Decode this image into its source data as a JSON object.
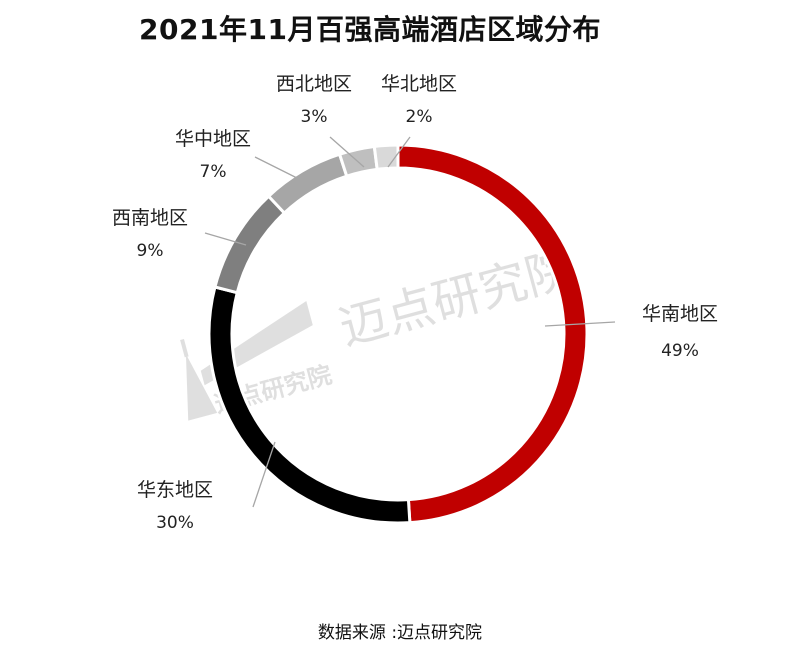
{
  "title": "2021年11月百强高端酒店区域分布",
  "source": "数据来源 :迈点研究院",
  "watermark": {
    "main_text": "迈点研究院",
    "logo_text": "迈点研究院"
  },
  "chart_data": {
    "type": "pie",
    "donut": true,
    "title": "2021年11月百强高端酒店区域分布",
    "legend": "none",
    "slices": [
      {
        "label": "华南地区",
        "value": 49,
        "display": "49%",
        "color": "#c00000"
      },
      {
        "label": "华东地区",
        "value": 30,
        "display": "30%",
        "color": "#000000"
      },
      {
        "label": "西南地区",
        "value": 9,
        "display": "9%",
        "color": "#7f7f7f"
      },
      {
        "label": "华中地区",
        "value": 7,
        "display": "7%",
        "color": "#a6a6a6"
      },
      {
        "label": "西北地区",
        "value": 3,
        "display": "3%",
        "color": "#bfbfbf"
      },
      {
        "label": "华北地区",
        "value": 2,
        "display": "2%",
        "color": "#d9d9d9"
      }
    ]
  }
}
